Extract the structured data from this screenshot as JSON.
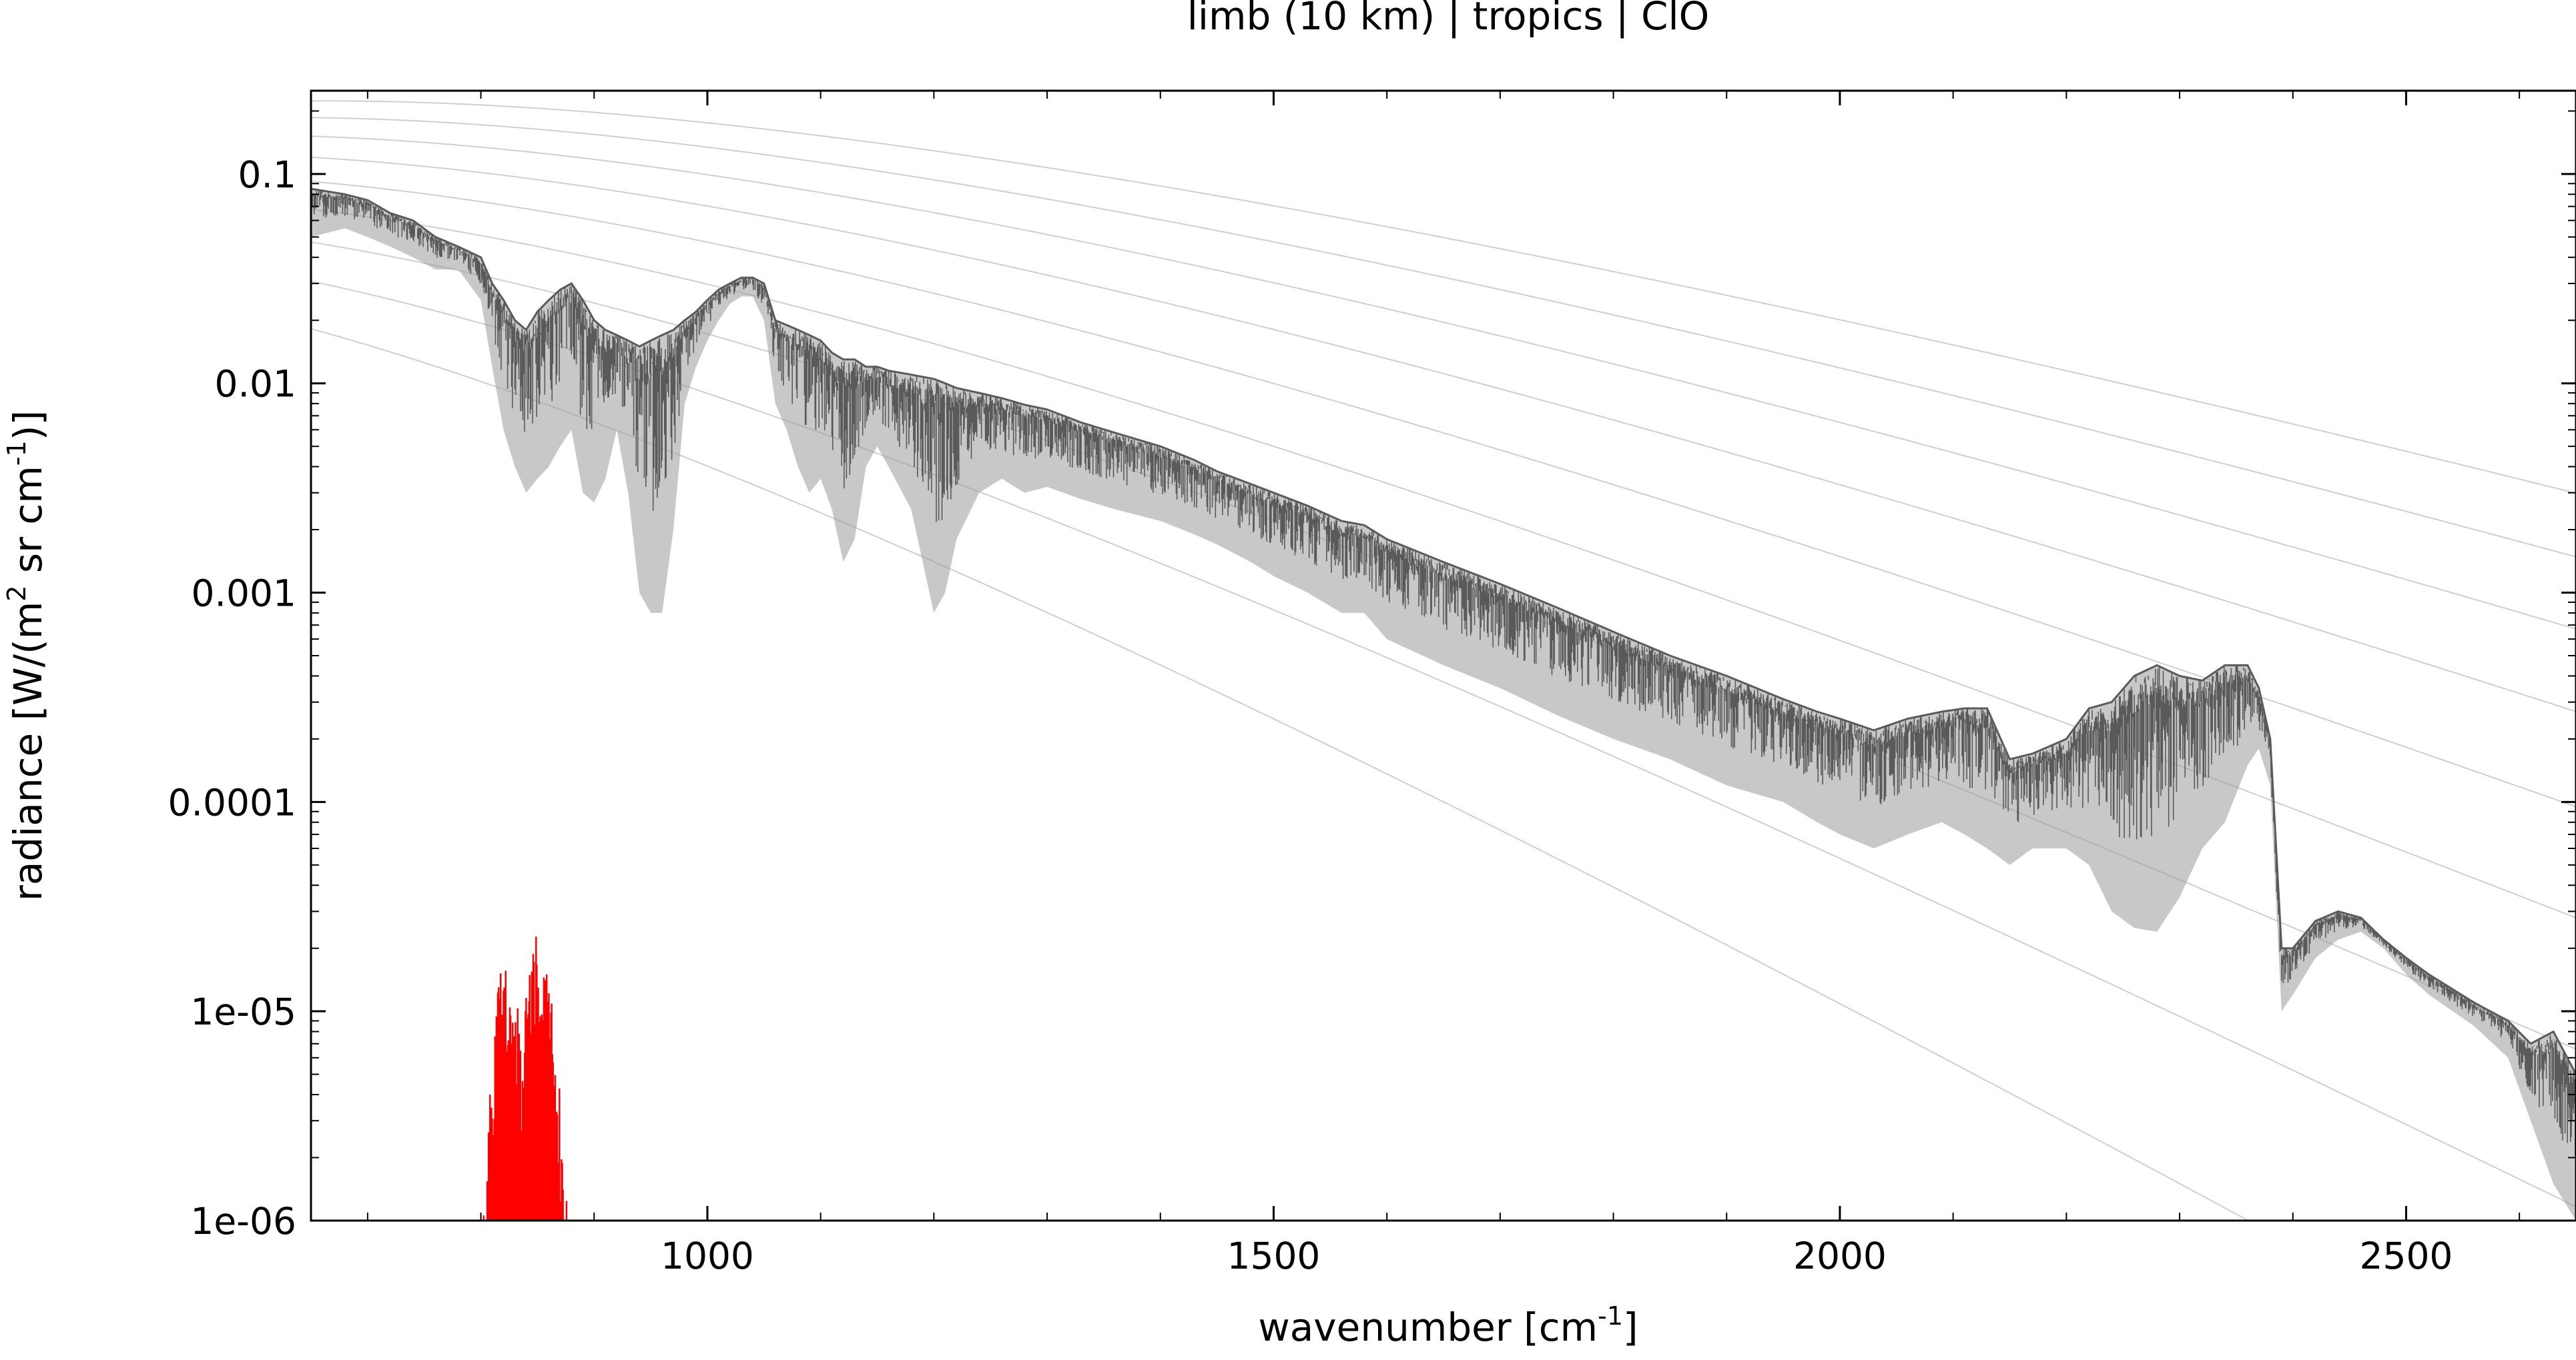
{
  "chart_data": {
    "type": "line",
    "title": "limb (10 km) | tropics | ClO",
    "xlabel": {
      "text": "wavenumber [cm",
      "sup": "-1",
      "suffix": "]"
    },
    "ylabel": {
      "text1": "radiance [W/(m",
      "sup1": "2",
      "text2": " sr cm",
      "sup2": "-1",
      "suffix": ")]"
    },
    "xlim": [
      650,
      2650
    ],
    "ylim": [
      1e-06,
      0.25
    ],
    "yscale": "log",
    "grid": false,
    "legend": "none",
    "x_ticks": [
      1000,
      1500,
      2000,
      2500
    ],
    "x_tick_labels": [
      "1000",
      "1500",
      "2000",
      "2500"
    ],
    "y_ticks": [
      0.1,
      0.01,
      0.001,
      0.0001,
      1e-05,
      1e-06
    ],
    "y_tick_labels": [
      "0.1",
      "0.01",
      "0.001",
      "0.0001",
      "1e-05",
      "1e-06"
    ],
    "colors": {
      "total": "#5a5a5a",
      "contribution": "#ff0000",
      "reference": "#bbbbbb"
    },
    "reference_temperatures_K": [
      180,
      200,
      220,
      240,
      260,
      280,
      300,
      320,
      340
    ],
    "series": [
      {
        "role": "total",
        "x": [
          650,
          680,
          700,
          720,
          740,
          760,
          780,
          800,
          810,
          820,
          830,
          840,
          850,
          860,
          870,
          880,
          890,
          900,
          910,
          920,
          930,
          940,
          950,
          960,
          970,
          980,
          990,
          1000,
          1010,
          1020,
          1030,
          1040,
          1050,
          1060,
          1070,
          1080,
          1090,
          1100,
          1110,
          1120,
          1130,
          1140,
          1150,
          1160,
          1180,
          1200,
          1210,
          1220,
          1240,
          1260,
          1280,
          1300,
          1330,
          1360,
          1400,
          1430,
          1450,
          1480,
          1500,
          1530,
          1560,
          1580,
          1600,
          1650,
          1700,
          1750,
          1800,
          1850,
          1900,
          1950,
          1980,
          2000,
          2030,
          2060,
          2090,
          2110,
          2130,
          2150,
          2170,
          2200,
          2220,
          2240,
          2260,
          2280,
          2300,
          2320,
          2340,
          2360,
          2370,
          2380,
          2390,
          2400,
          2420,
          2440,
          2460,
          2480,
          2500,
          2520,
          2560,
          2590,
          2610,
          2630,
          2650
        ],
        "upper": [
          0.085,
          0.08,
          0.075,
          0.065,
          0.06,
          0.05,
          0.045,
          0.04,
          0.03,
          0.025,
          0.02,
          0.018,
          0.022,
          0.025,
          0.028,
          0.03,
          0.025,
          0.02,
          0.018,
          0.017,
          0.016,
          0.015,
          0.016,
          0.017,
          0.018,
          0.02,
          0.022,
          0.025,
          0.028,
          0.03,
          0.032,
          0.032,
          0.03,
          0.02,
          0.019,
          0.018,
          0.017,
          0.016,
          0.014,
          0.013,
          0.013,
          0.012,
          0.012,
          0.0115,
          0.011,
          0.0105,
          0.01,
          0.0095,
          0.009,
          0.0085,
          0.0079,
          0.0075,
          0.0065,
          0.0058,
          0.005,
          0.0043,
          0.0038,
          0.0033,
          0.003,
          0.0026,
          0.0022,
          0.0021,
          0.0018,
          0.0014,
          0.0011,
          0.00085,
          0.00065,
          0.0005,
          0.0004,
          0.00031,
          0.00027,
          0.00025,
          0.00022,
          0.00025,
          0.00027,
          0.00028,
          0.00028,
          0.00016,
          0.00017,
          0.0002,
          0.00028,
          0.0003,
          0.0004,
          0.00045,
          0.0004,
          0.00038,
          0.00045,
          0.00045,
          0.00035,
          0.0002,
          2e-05,
          2e-05,
          2.7e-05,
          3e-05,
          2.8e-05,
          2.2e-05,
          1.8e-05,
          1.5e-05,
          1.1e-05,
          9e-06,
          7e-06,
          8e-06,
          5e-06
        ],
        "lower": [
          0.05,
          0.055,
          0.05,
          0.045,
          0.04,
          0.035,
          0.035,
          0.025,
          0.012,
          0.006,
          0.004,
          0.003,
          0.0035,
          0.004,
          0.005,
          0.006,
          0.003,
          0.0027,
          0.0035,
          0.006,
          0.003,
          0.001,
          0.0008,
          0.0008,
          0.002,
          0.008,
          0.012,
          0.016,
          0.02,
          0.024,
          0.026,
          0.026,
          0.02,
          0.008,
          0.006,
          0.004,
          0.003,
          0.0035,
          0.0025,
          0.0014,
          0.0018,
          0.004,
          0.005,
          0.004,
          0.0025,
          0.0008,
          0.001,
          0.0018,
          0.003,
          0.0035,
          0.003,
          0.0032,
          0.0028,
          0.0025,
          0.0022,
          0.0019,
          0.0017,
          0.0014,
          0.0012,
          0.001,
          0.0008,
          0.0008,
          0.0006,
          0.00045,
          0.00035,
          0.00026,
          0.0002,
          0.00016,
          0.00012,
          0.0001,
          8e-05,
          7e-05,
          6e-05,
          7e-05,
          8e-05,
          7e-05,
          6e-05,
          5e-05,
          6e-05,
          6e-05,
          5e-05,
          3e-05,
          2.5e-05,
          2.4e-05,
          3.5e-05,
          6e-05,
          8e-05,
          0.00015,
          0.00018,
          0.00012,
          1e-05,
          1.2e-05,
          1.8e-05,
          2.2e-05,
          2.4e-05,
          2e-05,
          1.5e-05,
          1.2e-05,
          8.5e-06,
          6e-06,
          3e-06,
          1.5e-06,
          1e-06
        ]
      },
      {
        "role": "contribution",
        "x": [
          800,
          805,
          810,
          815,
          820,
          825,
          830,
          835,
          840,
          845,
          850,
          855,
          860,
          865,
          870,
          875,
          880
        ],
        "values": [
          1e-06,
          3e-06,
          8e-06,
          1.4e-05,
          1.7e-05,
          1.8e-05,
          1.5e-05,
          8e-06,
          1.2e-05,
          2e-05,
          2.5e-05,
          2.2e-05,
          1.5e-05,
          9e-06,
          4e-06,
          1.7e-06,
          1e-06
        ]
      }
    ]
  }
}
